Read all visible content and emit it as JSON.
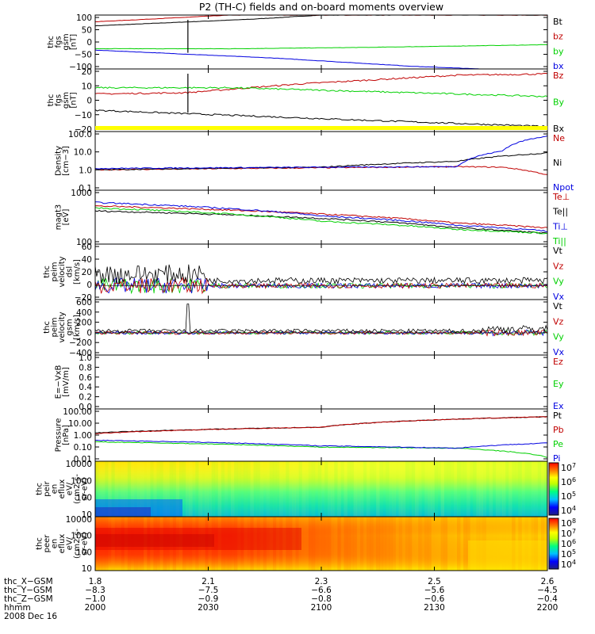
{
  "title": "P2 (TH-C) fields and on-board moments overview",
  "colors": {
    "black": "#000000",
    "red": "#c00000",
    "green": "#00d000",
    "blue": "#0000e0",
    "yellow": "#ffff00"
  },
  "colorbars": {
    "eflux_i": {
      "labels": [
        "10^7",
        "10^6",
        "10^5",
        "10^4"
      ]
    },
    "eflux_e": {
      "labels": [
        "10^8",
        "10^7",
        "10^6",
        "10^5",
        "10^4"
      ]
    }
  },
  "chart_data": [
    {
      "type": "line",
      "name": "fgs_gsm_top",
      "ylabel": [
        "thc",
        "fgs",
        "gsm",
        "[nT]"
      ],
      "yticks": [
        "100",
        "50",
        "0",
        "−50",
        "−100"
      ],
      "ylim": [
        -100,
        100
      ],
      "legend": [
        "Bt",
        "bz",
        "by",
        "bx"
      ],
      "series": [
        {
          "name": "Bt",
          "approx": [
            [
              0,
              60
            ],
            [
              0.35,
              85
            ],
            [
              0.5,
              100
            ]
          ]
        },
        {
          "name": "bz",
          "approx": [
            [
              0,
              75
            ],
            [
              0.3,
              100
            ]
          ]
        },
        {
          "name": "by",
          "approx": [
            [
              0,
              -25
            ],
            [
              0.3,
              -25
            ],
            [
              0.6,
              -20
            ],
            [
              1,
              -10
            ]
          ]
        },
        {
          "name": "bx",
          "approx": [
            [
              0,
              -30
            ],
            [
              0.4,
              -60
            ],
            [
              0.7,
              -90
            ],
            [
              1,
              -110
            ]
          ]
        }
      ]
    },
    {
      "type": "line",
      "name": "fgs_gsm_zoom",
      "ylabel": [
        "thc",
        "fgs",
        "gsm",
        "[nT]"
      ],
      "yticks": [
        "20",
        "10",
        "0",
        "−10",
        "−20"
      ],
      "ylim": [
        -25,
        25
      ],
      "legend": [
        "Bz",
        "By",
        "Bx"
      ],
      "series": [
        {
          "name": "Bz",
          "approx": [
            [
              0,
              5
            ],
            [
              0.2,
              6
            ],
            [
              0.45,
              13
            ],
            [
              0.8,
              20
            ],
            [
              1,
              21
            ]
          ]
        },
        {
          "name": "By",
          "approx": [
            [
              0,
              10
            ],
            [
              0.3,
              10
            ],
            [
              0.6,
              7
            ],
            [
              1,
              3
            ]
          ]
        },
        {
          "name": "Bx",
          "approx": [
            [
              0,
              -8
            ],
            [
              0.3,
              -12
            ],
            [
              0.6,
              -16
            ],
            [
              1,
              -21
            ]
          ]
        }
      ]
    },
    {
      "type": "line",
      "name": "density",
      "ylabel": [
        "Density",
        "[cm−3]"
      ],
      "scale": "log",
      "yticks": [
        "100.0",
        "10.0",
        "1.0",
        "0.1"
      ],
      "ylim": [
        0.1,
        100
      ],
      "legend": [
        "Ne",
        "Ni",
        "Npot"
      ],
      "series": [
        {
          "name": "Ne",
          "approx": [
            [
              0,
              1.1
            ],
            [
              0.5,
              1.4
            ],
            [
              0.8,
              1.6
            ],
            [
              0.9,
              1.5
            ],
            [
              1,
              0.6
            ]
          ]
        },
        {
          "name": "Ni",
          "approx": [
            [
              0,
              1.1
            ],
            [
              0.5,
              1.5
            ],
            [
              0.8,
              3
            ],
            [
              1,
              8
            ]
          ]
        },
        {
          "name": "Npot",
          "approx": [
            [
              0,
              1.3
            ],
            [
              0.5,
              1.5
            ],
            [
              0.8,
              1.6
            ],
            [
              0.9,
              10
            ],
            [
              1,
              60
            ]
          ]
        }
      ]
    },
    {
      "type": "line",
      "name": "temperature",
      "ylabel": [
        "magt3",
        "[eV]"
      ],
      "scale": "log",
      "yticks": [
        "1000",
        "100"
      ],
      "ylim": [
        100,
        10000
      ],
      "legend": [
        "Te⊥",
        "Te||",
        "Ti⊥",
        "Ti||"
      ],
      "series": [
        {
          "name": "Te⊥",
          "approx": [
            [
              0,
              2600
            ],
            [
              0.5,
              1300
            ],
            [
              0.8,
              600
            ],
            [
              1,
              400
            ]
          ]
        },
        {
          "name": "Te||",
          "approx": [
            [
              0,
              1700
            ],
            [
              0.5,
              900
            ],
            [
              0.8,
              400
            ],
            [
              1,
              250
            ]
          ]
        },
        {
          "name": "Ti⊥",
          "approx": [
            [
              0,
              3500
            ],
            [
              0.5,
              1100
            ],
            [
              0.8,
              500
            ],
            [
              1,
              300
            ]
          ]
        },
        {
          "name": "Ti||",
          "approx": [
            [
              0,
              2200
            ],
            [
              0.5,
              700
            ],
            [
              0.8,
              350
            ],
            [
              1,
              250
            ]
          ]
        }
      ]
    },
    {
      "type": "line",
      "name": "velocity_dsl",
      "ylabel": [
        "thc",
        "peim",
        "velocity",
        "dsl",
        "[km/s]"
      ],
      "yticks": [
        "60",
        "40",
        "20",
        "0",
        "−20"
      ],
      "ylim": [
        -20,
        60
      ],
      "legend": [
        "Vt",
        "Vz",
        "Vy",
        "Vx"
      ]
    },
    {
      "type": "line",
      "name": "velocity_gsm",
      "ylabel": [
        "thc",
        "peim",
        "velocity",
        "gsm",
        "[km/s]"
      ],
      "yticks": [
        "600",
        "400",
        "200",
        "0",
        "−200",
        "−400"
      ],
      "ylim": [
        -400,
        600
      ],
      "legend": [
        "Vt",
        "Vz",
        "Vy",
        "Vx"
      ]
    },
    {
      "type": "line",
      "name": "efield",
      "ylabel": [
        "E=−VxB",
        "[mV/m]"
      ],
      "yticks": [
        "1.0",
        "0.8",
        "0.6",
        "0.4",
        "0.2",
        "0.0"
      ],
      "ylim": [
        0,
        1
      ],
      "legend": [
        "Ez",
        "Ey",
        "Ex"
      ]
    },
    {
      "type": "line",
      "name": "pressure",
      "ylabel": [
        "Pressure",
        "[nPa]"
      ],
      "scale": "log",
      "yticks": [
        "100.00",
        "10.00",
        "1.00",
        "0.10",
        "0.01"
      ],
      "ylim": [
        0.01,
        100
      ],
      "legend": [
        "Pt",
        "Pb",
        "Pe",
        "Pi"
      ],
      "series": [
        {
          "name": "Pt",
          "approx": [
            [
              0,
              1.5
            ],
            [
              0.5,
              4
            ],
            [
              1,
              25
            ]
          ]
        },
        {
          "name": "Pb",
          "approx": [
            [
              0,
              1.3
            ],
            [
              0.5,
              4
            ],
            [
              1,
              25
            ]
          ]
        },
        {
          "name": "Pe",
          "approx": [
            [
              0,
              0.3
            ],
            [
              0.5,
              0.12
            ],
            [
              0.8,
              0.1
            ],
            [
              1,
              0.02
            ]
          ]
        },
        {
          "name": "Pi",
          "approx": [
            [
              0,
              0.4
            ],
            [
              0.5,
              0.15
            ],
            [
              0.8,
              0.1
            ],
            [
              1,
              0.25
            ]
          ]
        }
      ]
    },
    {
      "type": "heatmap",
      "name": "eflux_ions",
      "ylabel": [
        "thc",
        "peir",
        "en",
        "eflux",
        "eV/",
        "(cm2-s-",
        "sr-eV)"
      ],
      "scale": "log",
      "yticks": [
        "10000",
        "1000",
        "100",
        "10"
      ]
    },
    {
      "type": "heatmap",
      "name": "eflux_electrons",
      "ylabel": [
        "thc",
        "peer",
        "en",
        "eflux",
        "eV/",
        "(cm2-s-",
        "sr-eV)"
      ],
      "scale": "log",
      "yticks": [
        "10000",
        "1000",
        "100",
        "10"
      ]
    }
  ],
  "xaxis": {
    "rows": [
      {
        "label": "thc_X−GSM",
        "values": [
          "1.8",
          "2.1",
          "2.3",
          "2.5",
          "2.6"
        ]
      },
      {
        "label": "thc_Y−GSM",
        "values": [
          "−8.3",
          "−7.5",
          "−6.6",
          "−5.6",
          "−4.5"
        ]
      },
      {
        "label": "thc_Z−GSM",
        "values": [
          "−1.0",
          "−0.9",
          "−0.8",
          "−0.6",
          "−0.4"
        ]
      },
      {
        "label": "hhmm",
        "values": [
          "2000",
          "2030",
          "2100",
          "2130",
          "2200"
        ]
      }
    ],
    "date": "2008 Dec 16"
  }
}
